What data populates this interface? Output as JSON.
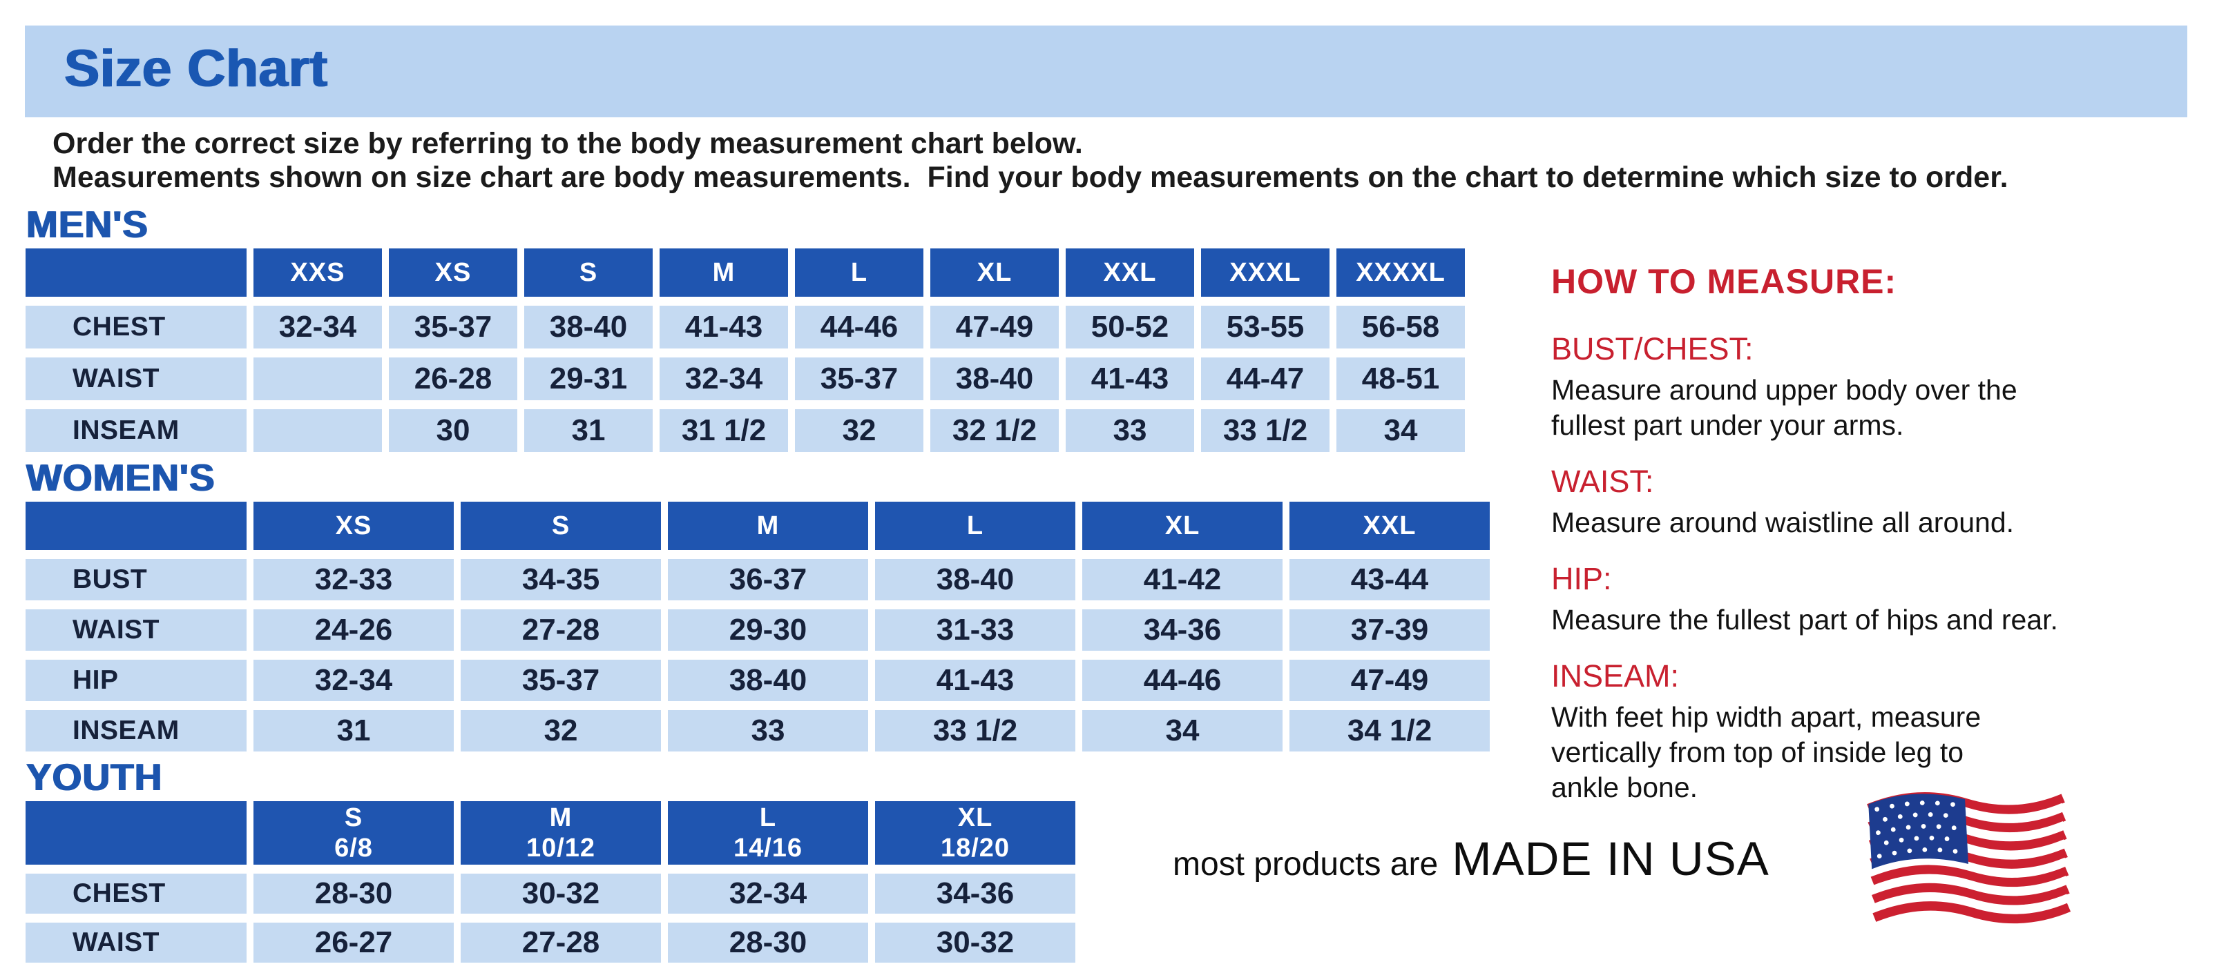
{
  "banner": {
    "title": "Size Chart"
  },
  "intro": {
    "line1": "Order the correct size by referring to the body measurement chart below.",
    "line2": "Measurements shown on size chart are body measurements.  Find your body measurements on the chart to determine which size to order."
  },
  "sections": {
    "mens": {
      "heading": "MEN'S",
      "columns": [
        "XXS",
        "XS",
        "S",
        "M",
        "L",
        "XL",
        "XXL",
        "XXXL",
        "XXXXL"
      ],
      "rows": [
        {
          "label": "CHEST",
          "values": [
            "32-34",
            "35-37",
            "38-40",
            "41-43",
            "44-46",
            "47-49",
            "50-52",
            "53-55",
            "56-58"
          ]
        },
        {
          "label": "WAIST",
          "values": [
            "",
            "26-28",
            "29-31",
            "32-34",
            "35-37",
            "38-40",
            "41-43",
            "44-47",
            "48-51"
          ]
        },
        {
          "label": "INSEAM",
          "values": [
            "",
            "30",
            "31",
            "31 1/2",
            "32",
            "32 1/2",
            "33",
            "33 1/2",
            "34"
          ]
        }
      ]
    },
    "womens": {
      "heading": "WOMEN'S",
      "columns": [
        "XS",
        "S",
        "M",
        "L",
        "XL",
        "XXL"
      ],
      "rows": [
        {
          "label": "BUST",
          "values": [
            "32-33",
            "34-35",
            "36-37",
            "38-40",
            "41-42",
            "43-44"
          ]
        },
        {
          "label": "WAIST",
          "values": [
            "24-26",
            "27-28",
            "29-30",
            "31-33",
            "34-36",
            "37-39"
          ]
        },
        {
          "label": "HIP",
          "values": [
            "32-34",
            "35-37",
            "38-40",
            "41-43",
            "44-46",
            "47-49"
          ]
        },
        {
          "label": "INSEAM",
          "values": [
            "31",
            "32",
            "33",
            "33 1/2",
            "34",
            "34 1/2"
          ]
        }
      ]
    },
    "youth": {
      "heading": "YOUTH",
      "columns": [
        {
          "size": "S",
          "range": "6/8"
        },
        {
          "size": "M",
          "range": "10/12"
        },
        {
          "size": "L",
          "range": "14/16"
        },
        {
          "size": "XL",
          "range": "18/20"
        }
      ],
      "rows": [
        {
          "label": "CHEST",
          "values": [
            "28-30",
            "30-32",
            "32-34",
            "34-36"
          ]
        },
        {
          "label": "WAIST",
          "values": [
            "26-27",
            "27-28",
            "28-30",
            "30-32"
          ]
        }
      ]
    }
  },
  "how_to_measure": {
    "heading": "HOW TO MEASURE:",
    "sections": [
      {
        "label": "BUST/CHEST:",
        "text": "Measure around upper body over the\nfullest part under your arms."
      },
      {
        "label": "WAIST:",
        "text": "Measure around waistline all around."
      },
      {
        "label": "HIP:",
        "text": "Measure the fullest part of hips and rear."
      },
      {
        "label": "INSEAM:",
        "text": "With feet hip width apart, measure\nvertically from top of inside leg to\nankle bone."
      }
    ]
  },
  "footer": {
    "prefix": "most products are",
    "statement": "MADE IN USA",
    "flag_icon": "us-flag-icon"
  },
  "colors": {
    "banner_bg": "#b9d3f1",
    "title_blue": "#1a57b2",
    "heading_blue": "#1c55ae",
    "header_cell_bg": "#1f55b0",
    "cell_bg": "#c5daf2",
    "cell_text": "#16213a",
    "accent_red": "#c8202f",
    "flag_blue": "#1d3c8f",
    "flag_red": "#cc2030"
  }
}
